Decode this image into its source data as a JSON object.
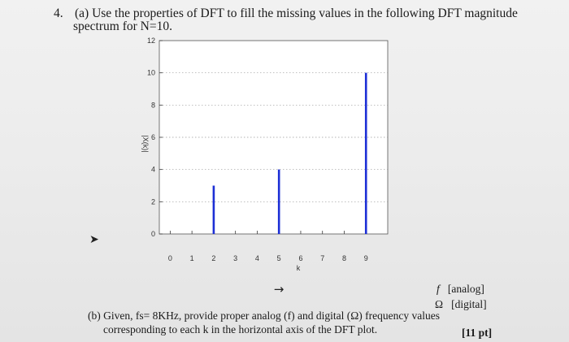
{
  "question": {
    "number": "4.",
    "part_a_line1": "(a) Use the properties of DFT to fill the missing values in the following DFT magnitude",
    "part_a_line2": "spectrum for N=10.",
    "part_b_line1": "(b) Given, fs= 8KHz, provide proper analog (f) and digital (Ω) frequency values",
    "part_b_line2": "corresponding to each k in the horizontal axis of the DFT plot.",
    "points": "[11 pt]"
  },
  "legend": {
    "analog_symbol": "f",
    "analog_label": "[analog]",
    "digital_symbol": "Ω",
    "digital_label": "[digital]"
  },
  "arrow_glyph": "→",
  "colors": {
    "stem": "#1d2fd6",
    "axis": "#3a3a3a",
    "grid": "#9a9a9a"
  },
  "chart_data": {
    "type": "stem",
    "xlabel": "k",
    "ylabel": "|X(k)|",
    "xlim": [
      -0.5,
      10
    ],
    "ylim": [
      0,
      12
    ],
    "x_ticks": [
      0,
      1,
      2,
      3,
      4,
      5,
      6,
      7,
      8,
      9
    ],
    "y_ticks": [
      0,
      2,
      4,
      6,
      8,
      10,
      12
    ],
    "grid": "dotted-horizontal",
    "stems": [
      {
        "k": 2,
        "value": 3
      },
      {
        "k": 5,
        "value": 4
      },
      {
        "k": 9,
        "value": 10
      }
    ]
  }
}
